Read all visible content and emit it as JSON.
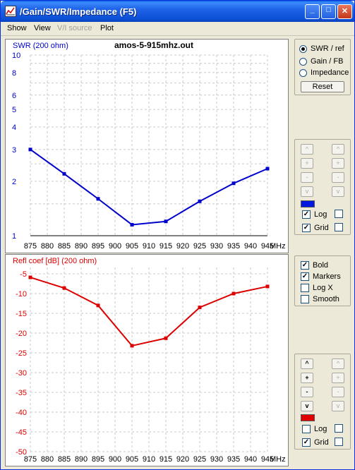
{
  "window": {
    "title": "/Gain/SWR/Impedance (F5)",
    "minimize": "_",
    "maximize": "□",
    "close": "✕"
  },
  "menu": {
    "show": "Show",
    "view": "View",
    "vi_source": "V/I source",
    "plot": "Plot"
  },
  "swr_plot": {
    "file_title": "amos-5-915mhz.out",
    "ylabel": "SWR (200 ohm)",
    "yticks": [
      "10",
      "8",
      "6",
      "5",
      "4",
      "3",
      "2",
      "1"
    ],
    "xticks": [
      "875",
      "880",
      "885",
      "890",
      "895",
      "900",
      "905",
      "910",
      "915",
      "920",
      "925",
      "930",
      "935",
      "940",
      "945"
    ],
    "xunit": "MHz",
    "color": "#0000cc"
  },
  "refl_plot": {
    "ylabel": "Refl coef [dB] (200 ohm)",
    "yticks": [
      "-5",
      "-10",
      "-15",
      "-20",
      "-25",
      "-30",
      "-35",
      "-40",
      "-45",
      "-50"
    ],
    "xticks": [
      "875",
      "880",
      "885",
      "890",
      "895",
      "900",
      "905",
      "910",
      "915",
      "920",
      "925",
      "930",
      "935",
      "940",
      "945"
    ],
    "xunit": "MHz",
    "color": "#dd0000"
  },
  "chart_data": [
    {
      "type": "line",
      "ylabel": "SWR (200 ohm)",
      "xlabel": "MHz",
      "x": [
        875,
        885,
        895,
        905,
        915,
        925,
        935,
        945
      ],
      "series": [
        {
          "values": [
            3.0,
            2.2,
            1.6,
            1.15,
            1.2,
            1.55,
            1.95,
            2.35
          ]
        }
      ],
      "xlim": [
        875,
        945
      ],
      "ylim": [
        1,
        10
      ],
      "yscale": "log",
      "grid": true
    },
    {
      "type": "line",
      "ylabel": "Refl coef [dB] (200 ohm)",
      "xlabel": "MHz",
      "x": [
        875,
        885,
        895,
        905,
        915,
        925,
        935,
        945
      ],
      "series": [
        {
          "values": [
            -5.9,
            -8.6,
            -13.0,
            -23.2,
            -21.3,
            -13.5,
            -10.0,
            -8.2
          ]
        }
      ],
      "xlim": [
        875,
        945
      ],
      "ylim": [
        -50,
        -5
      ],
      "grid": true
    }
  ],
  "controls": {
    "radio_swr": "SWR / ref",
    "radio_gain": "Gain / FB",
    "radio_impedance": "Impedance",
    "reset": "Reset",
    "upper": {
      "log": "Log",
      "grid": "Grid",
      "swatch_color": "#0018e0"
    },
    "options": {
      "bold": "Bold",
      "markers": "Markers",
      "logx": "Log X",
      "smooth": "Smooth"
    },
    "lower": {
      "log": "Log",
      "grid": "Grid",
      "swatch_color": "#e00000"
    },
    "arrows": {
      "up": "^",
      "plus": "+",
      "minus": "-",
      "down": "v"
    },
    "checkmark": "✓"
  }
}
